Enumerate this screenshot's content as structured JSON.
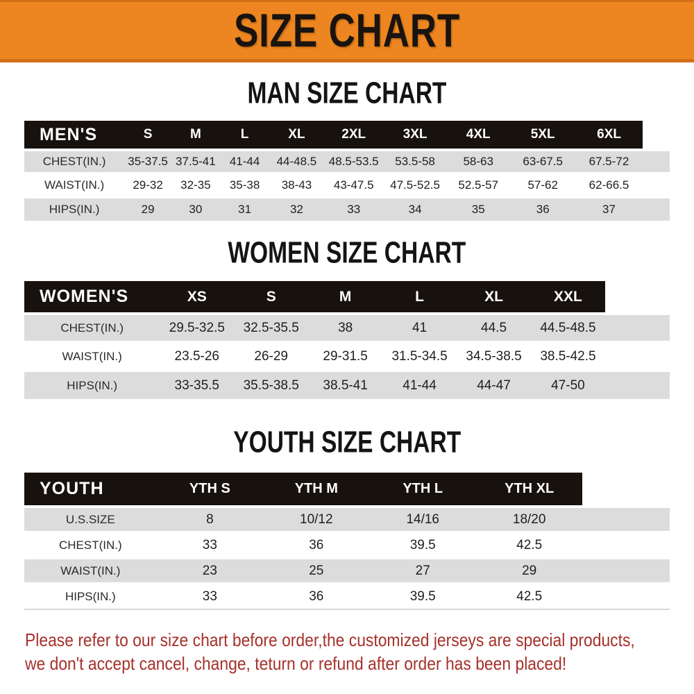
{
  "banner": {
    "title": "SIZE CHART"
  },
  "sections": [
    {
      "id": "men",
      "title": "MAN SIZE CHART",
      "table": {
        "corner_label": "MEN'S",
        "columns": [
          "S",
          "M",
          "L",
          "XL",
          "2XL",
          "3XL",
          "4XL",
          "5XL",
          "6XL"
        ],
        "rows": [
          {
            "label": "CHEST(IN.)",
            "values": [
              "35-37.5",
              "37.5-41",
              "41-44",
              "44-48.5",
              "48.5-53.5",
              "53.5-58",
              "58-63",
              "63-67.5",
              "67.5-72"
            ]
          },
          {
            "label": "WAIST(IN.)",
            "values": [
              "29-32",
              "32-35",
              "35-38",
              "38-43",
              "43-47.5",
              "47.5-52.5",
              "52.5-57",
              "57-62",
              "62-66.5"
            ]
          },
          {
            "label": "HIPS(IN.)",
            "values": [
              "29",
              "30",
              "31",
              "32",
              "33",
              "34",
              "35",
              "36",
              "37"
            ]
          }
        ]
      }
    },
    {
      "id": "women",
      "title": "WOMEN SIZE CHART",
      "table": {
        "corner_label": "WOMEN'S",
        "columns": [
          "XS",
          "S",
          "M",
          "L",
          "XL",
          "XXL"
        ],
        "rows": [
          {
            "label": "CHEST(IN.)",
            "values": [
              "29.5-32.5",
              "32.5-35.5",
              "38",
              "41",
              "44.5",
              "44.5-48.5"
            ]
          },
          {
            "label": "WAIST(IN.)",
            "values": [
              "23.5-26",
              "26-29",
              "29-31.5",
              "31.5-34.5",
              "34.5-38.5",
              "38.5-42.5"
            ]
          },
          {
            "label": "HIPS(IN.)",
            "values": [
              "33-35.5",
              "35.5-38.5",
              "38.5-41",
              "41-44",
              "44-47",
              "47-50"
            ]
          }
        ]
      }
    },
    {
      "id": "youth",
      "title": "YOUTH SIZE CHART",
      "table": {
        "corner_label": "YOUTH",
        "columns": [
          "YTH S",
          "YTH M",
          "YTH L",
          "YTH XL"
        ],
        "rows": [
          {
            "label": "U.S.SIZE",
            "values": [
              "8",
              "10/12",
              "14/16",
              "18/20"
            ]
          },
          {
            "label": "CHEST(IN.)",
            "values": [
              "33",
              "36",
              "39.5",
              "42.5"
            ]
          },
          {
            "label": "WAIST(IN.)",
            "values": [
              "23",
              "25",
              "27",
              "29"
            ]
          },
          {
            "label": "HIPS(IN.)",
            "values": [
              "33",
              "36",
              "39.5",
              "42.5"
            ]
          }
        ]
      }
    }
  ],
  "footer": {
    "line1": "Please refer to our size chart before order,the customized jerseys are special products,",
    "line2": "we don't accept cancel, change, teturn or refund after order has been placed!"
  },
  "colors": {
    "banner_bg": "#ED8620",
    "banner_border": "#D2701A",
    "banner_text": "#1A1410",
    "header_bar_bg": "#17120E",
    "header_bar_text": "#FFFFFF",
    "row_gray": "#DCDCDC",
    "row_white": "#FFFFFF",
    "footer_text": "#A5312B"
  }
}
